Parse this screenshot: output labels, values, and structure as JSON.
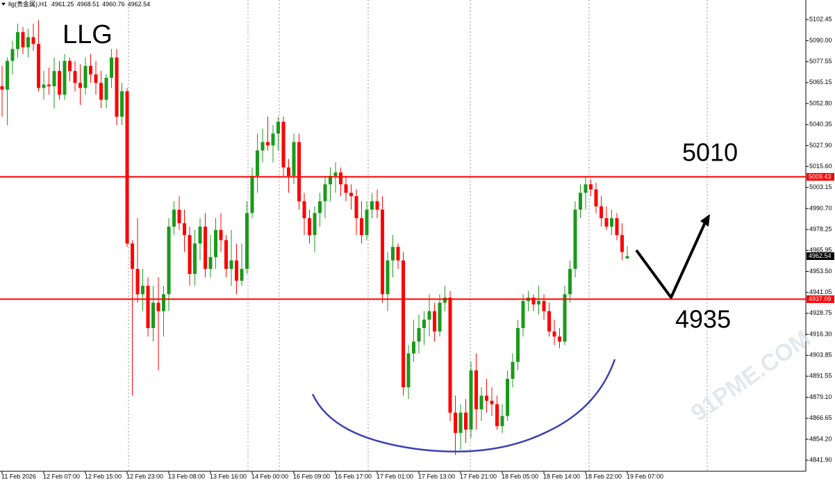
{
  "chart_data": {
    "type": "candlestick",
    "symbol": "llg(贵金属),H1",
    "title": "LLG",
    "watermark": "91PME.COM",
    "annotations": [
      "5010",
      "4935"
    ],
    "up_color": "#1a9a1a",
    "down_color": "#ff0000",
    "ylim": [
      4834.5,
      5114.0
    ],
    "yticks": [
      5102.45,
      {
        "value": 5090.0,
        "label": "5090.00"
      },
      5077.55,
      5065.15,
      {
        "value": 5052.8,
        "label": "5052.80"
      },
      5040.35,
      {
        "value": 5027.9,
        "label": "5027.90"
      },
      {
        "value": 5015.6,
        "label": "5015.60"
      },
      5003.15,
      {
        "value": 4990.7,
        "label": "4990.70"
      },
      4978.25,
      4965.95,
      {
        "value": 4953.5,
        "label": "4953.50"
      },
      4941.05,
      4928.75,
      {
        "value": 4916.3,
        "label": "4916.30"
      },
      4903.85,
      4891.55,
      {
        "value": 4879.1,
        "label": "4879.10"
      },
      4866.65,
      {
        "value": 4854.2,
        "label": "4854.20"
      },
      {
        "value": 4841.9,
        "label": "4841.90"
      }
    ],
    "hlines": [
      {
        "value": 5009.43,
        "color": "#ff0000"
      },
      {
        "value": 4937.09,
        "color": "#ff0000"
      }
    ],
    "categories": [
      "11 Feb 2026",
      null,
      null,
      null,
      null,
      null,
      null,
      null,
      "12 Feb 07:00",
      null,
      null,
      null,
      null,
      null,
      null,
      null,
      "12 Feb 15:00",
      null,
      null,
      null,
      null,
      null,
      null,
      null,
      "12 Feb 23:00",
      null,
      null,
      null,
      null,
      null,
      null,
      null,
      "13 Feb 08:00",
      null,
      null,
      null,
      null,
      null,
      null,
      null,
      "13 Feb 16:00",
      null,
      null,
      null,
      null,
      null,
      null,
      null,
      "14 Feb 00:00",
      null,
      null,
      null,
      null,
      null,
      null,
      null,
      "16 Feb 09:00",
      null,
      null,
      null,
      null,
      null,
      null,
      null,
      "16 Feb 17:00",
      null,
      null,
      null,
      null,
      null,
      null,
      null,
      "17 Feb 01:00",
      null,
      null,
      null,
      null,
      null,
      null,
      null,
      "17 Feb 13:00",
      null,
      null,
      null,
      null,
      null,
      null,
      null,
      "17 Feb 21:00",
      null,
      null,
      null,
      null,
      null,
      null,
      null,
      "18 Feb 05:00",
      null,
      null,
      null,
      null,
      null,
      null,
      null,
      "18 Feb 14:00",
      null,
      null,
      null,
      null,
      null,
      null,
      null,
      "18 Feb 22:00",
      null,
      null,
      null,
      null,
      null,
      null,
      null,
      "19 Feb 07:00"
    ],
    "ohlc": [
      [
        5063,
        5075,
        5045,
        5061
      ],
      [
        5061,
        5080,
        5040,
        5078
      ],
      [
        5078,
        5090,
        5070,
        5085
      ],
      [
        5085,
        5100,
        5080,
        5095
      ],
      [
        5095,
        5098,
        5082,
        5086
      ],
      [
        5086,
        5097,
        5080,
        5092
      ],
      [
        5092,
        5100,
        5084,
        5088
      ],
      [
        5088,
        5102,
        5060,
        5062
      ],
      [
        5062,
        5072,
        5055,
        5064
      ],
      [
        5064,
        5074,
        5058,
        5063
      ],
      [
        5063,
        5080,
        5050,
        5072
      ],
      [
        5072,
        5078,
        5055,
        5058
      ],
      [
        5058,
        5082,
        5055,
        5078
      ],
      [
        5078,
        5080,
        5066,
        5072
      ],
      [
        5072,
        5078,
        5060,
        5065
      ],
      [
        5065,
        5076,
        5052,
        5062
      ],
      [
        5062,
        5080,
        5058,
        5075
      ],
      [
        5075,
        5082,
        5065,
        5070
      ],
      [
        5070,
        5078,
        5058,
        5065
      ],
      [
        5065,
        5072,
        5050,
        5055
      ],
      [
        5055,
        5070,
        5050,
        5068
      ],
      [
        5068,
        5085,
        5062,
        5080
      ],
      [
        5080,
        5085,
        5040,
        5045
      ],
      [
        5045,
        5065,
        5040,
        5060
      ],
      [
        5060,
        5062,
        4968,
        4970
      ],
      [
        4970,
        4972,
        4880,
        4955
      ],
      [
        4955,
        4985,
        4935,
        4940
      ],
      [
        4940,
        4955,
        4930,
        4945
      ],
      [
        4945,
        4950,
        4915,
        4920
      ],
      [
        4920,
        4945,
        4912,
        4935
      ],
      [
        4935,
        4950,
        4895,
        4930
      ],
      [
        4930,
        4945,
        4915,
        4940
      ],
      [
        4940,
        4985,
        4930,
        4980
      ],
      [
        4980,
        4995,
        4975,
        4990
      ],
      [
        4990,
        4998,
        4978,
        4982
      ],
      [
        4982,
        4990,
        4965,
        4975
      ],
      [
        4975,
        4980,
        4945,
        4952
      ],
      [
        4952,
        4978,
        4945,
        4970
      ],
      [
        4970,
        4985,
        4960,
        4980
      ],
      [
        4980,
        4988,
        4950,
        4955
      ],
      [
        4955,
        4975,
        4950,
        4962
      ],
      [
        4962,
        4985,
        4955,
        4978
      ],
      [
        4978,
        4988,
        4965,
        4972
      ],
      [
        4972,
        4975,
        4950,
        4955
      ],
      [
        4955,
        4978,
        4945,
        4960
      ],
      [
        4960,
        4970,
        4940,
        4948
      ],
      [
        4948,
        4970,
        4945,
        4955
      ],
      [
        4955,
        4995,
        4952,
        4988
      ],
      [
        4988,
        5015,
        4985,
        5010
      ],
      [
        5010,
        5035,
        5000,
        5025
      ],
      [
        5025,
        5038,
        5018,
        5030
      ],
      [
        5030,
        5045,
        5025,
        5028
      ],
      [
        5028,
        5040,
        5018,
        5035
      ],
      [
        5035,
        5045,
        5025,
        5042
      ],
      [
        5042,
        5045,
        5010,
        5015
      ],
      [
        5015,
        5020,
        5000,
        5010
      ],
      [
        5010,
        5035,
        5005,
        5030
      ],
      [
        5030,
        5035,
        4990,
        4995
      ],
      [
        4995,
        5000,
        4975,
        4985
      ],
      [
        4985,
        4990,
        4970,
        4975
      ],
      [
        4975,
        4992,
        4965,
        4988
      ],
      [
        4988,
        5000,
        4980,
        4995
      ],
      [
        4995,
        5010,
        4985,
        5005
      ],
      [
        5005,
        5015,
        4995,
        5010
      ],
      [
        5010,
        5018,
        5000,
        5012
      ],
      [
        5012,
        5015,
        4998,
        5005
      ],
      [
        5005,
        5010,
        4995,
        5000
      ],
      [
        5000,
        5005,
        4990,
        4998
      ],
      [
        4998,
        5002,
        4975,
        4985
      ],
      [
        4985,
        4995,
        4970,
        4975
      ],
      [
        4975,
        4995,
        4972,
        4990
      ],
      [
        4990,
        5000,
        4985,
        4995
      ],
      [
        4995,
        5002,
        4985,
        4990
      ],
      [
        4990,
        4998,
        4935,
        4940
      ],
      [
        4940,
        4965,
        4930,
        4960
      ],
      [
        4960,
        4975,
        4950,
        4968
      ],
      [
        4968,
        4970,
        4955,
        4960
      ],
      [
        4960,
        4965,
        4880,
        4885
      ],
      [
        4885,
        4910,
        4878,
        4905
      ],
      [
        4905,
        4925,
        4900,
        4912
      ],
      [
        4912,
        4928,
        4905,
        4920
      ],
      [
        4920,
        4930,
        4910,
        4925
      ],
      [
        4925,
        4940,
        4915,
        4930
      ],
      [
        4930,
        4935,
        4912,
        4918
      ],
      [
        4918,
        4940,
        4915,
        4935
      ],
      [
        4935,
        4945,
        4930,
        4938
      ],
      [
        4938,
        4942,
        4865,
        4870
      ],
      [
        4870,
        4880,
        4845,
        4858
      ],
      [
        4858,
        4875,
        4848,
        4870
      ],
      [
        4870,
        4878,
        4852,
        4860
      ],
      [
        4860,
        4900,
        4855,
        4895
      ],
      [
        4895,
        4905,
        4860,
        4872
      ],
      [
        4872,
        4885,
        4865,
        4880
      ],
      [
        4880,
        4890,
        4870,
        4877
      ],
      [
        4877,
        4885,
        4868,
        4875
      ],
      [
        4875,
        4880,
        4860,
        4862
      ],
      [
        4862,
        4875,
        4858,
        4868
      ],
      [
        4868,
        4895,
        4865,
        4890
      ],
      [
        4890,
        4905,
        4885,
        4900
      ],
      [
        4900,
        4925,
        4895,
        4920
      ],
      [
        4920,
        4940,
        4915,
        4936
      ],
      [
        4936,
        4942,
        4930,
        4938
      ],
      [
        4938,
        4940,
        4930,
        4934
      ],
      [
        4934,
        4945,
        4928,
        4936
      ],
      [
        4936,
        4940,
        4925,
        4930
      ],
      [
        4930,
        4935,
        4915,
        4918
      ],
      [
        4918,
        4925,
        4910,
        4915
      ],
      [
        4915,
        4920,
        4908,
        4912
      ],
      [
        4912,
        4945,
        4910,
        4940
      ],
      [
        4940,
        4960,
        4935,
        4955
      ],
      [
        4955,
        4995,
        4950,
        4990
      ],
      [
        4990,
        5005,
        4985,
        5000
      ],
      [
        5000,
        5010,
        4990,
        5005
      ],
      [
        5005,
        5008,
        4998,
        5002
      ],
      [
        5002,
        5006,
        4988,
        4992
      ],
      [
        4992,
        4998,
        4980,
        4985
      ],
      [
        4985,
        4992,
        4978,
        4980
      ],
      [
        4980,
        4990,
        4975,
        4985
      ],
      [
        4985,
        4988,
        4972,
        4975
      ],
      [
        4975,
        4982,
        4960,
        4965
      ],
      [
        4961.25,
        4968.51,
        4960.76,
        4962.54
      ]
    ]
  }
}
